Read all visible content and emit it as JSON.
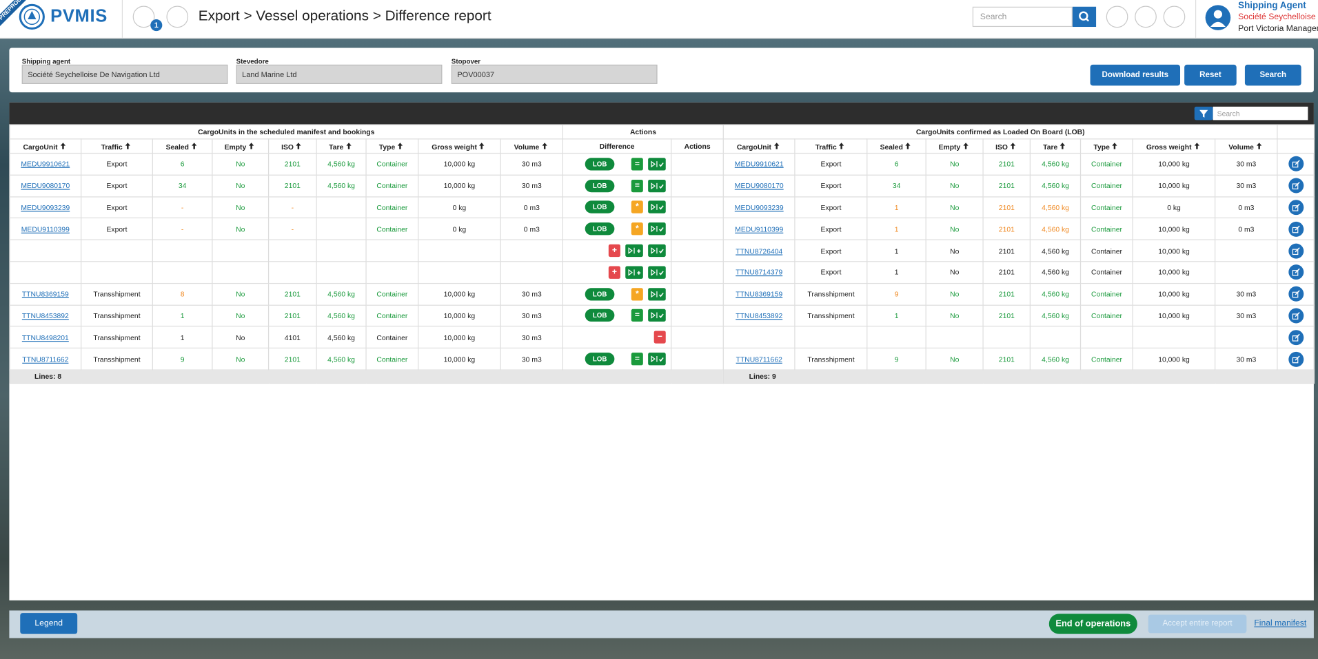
{
  "header": {
    "env": "PREPROD",
    "brand": "PVMIS",
    "notifications": 1,
    "breadcrumb": "Export > Vessel operations > Difference report",
    "search_placeholder": "Search",
    "user": {
      "role": "Shipping Agent",
      "company": "Société Seychelloise De",
      "organization": "Port Victoria Managem"
    }
  },
  "filters": [
    {
      "label": "Shipping agent",
      "value": "Société Seychelloise De Navigation Ltd"
    },
    {
      "label": "Stevedore",
      "value": "Land Marine Ltd"
    },
    {
      "label": "Stopover",
      "value": "POV00037"
    }
  ],
  "buttons": {
    "download": "Download results",
    "reset": "Reset",
    "search": "Search"
  },
  "table": {
    "search_placeholder": "Search",
    "groups": {
      "left": "CargoUnits in the scheduled manifest and bookings",
      "actions": "Actions",
      "right": "CargoUnits confirmed as Loaded On Board (LOB)"
    },
    "left_columns": [
      "CargoUnit",
      "Traffic",
      "Sealed",
      "Empty",
      "ISO",
      "Tare",
      "Type",
      "Gross weight",
      "Volume"
    ],
    "middle_columns": [
      "Difference",
      "Actions"
    ],
    "right_columns": [
      "CargoUnit",
      "Traffic",
      "Sealed",
      "Empty",
      "ISO",
      "Tare",
      "Type",
      "Gross weight",
      "Volume"
    ],
    "rows": [
      {
        "left": [
          "MEDU9910621",
          "Export",
          "6",
          "No",
          "2101",
          "4,560 kg",
          "Container",
          "10,000 kg",
          "30 m3"
        ],
        "left_colors": [
          "green",
          "green",
          "green",
          "green",
          "green"
        ],
        "status": "LOB",
        "difference": "=",
        "right": [
          "MEDU9910621",
          "Export",
          "6",
          "No",
          "2101",
          "4,560 kg",
          "Container",
          "10,000 kg",
          "30 m3"
        ],
        "right_colors": [
          "green",
          "green",
          "green",
          "green",
          "green"
        ]
      },
      {
        "left": [
          "MEDU9080170",
          "Export",
          "34",
          "No",
          "2101",
          "4,560 kg",
          "Container",
          "10,000 kg",
          "30 m3"
        ],
        "left_colors": [
          "green",
          "green",
          "green",
          "green",
          "green"
        ],
        "status": "LOB",
        "difference": "=",
        "right": [
          "MEDU9080170",
          "Export",
          "34",
          "No",
          "2101",
          "4,560 kg",
          "Container",
          "10,000 kg",
          "30 m3"
        ],
        "right_colors": [
          "green",
          "green",
          "green",
          "green",
          "green"
        ]
      },
      {
        "left": [
          "MEDU9093239",
          "Export",
          "-",
          "No",
          "-",
          null,
          "Container",
          "0 kg",
          "0 m3"
        ],
        "left_colors": [
          "orange",
          "green",
          "orange",
          "black",
          "green"
        ],
        "status": "LOB",
        "difference": "*",
        "right": [
          "MEDU9093239",
          "Export",
          "1",
          "No",
          "2101",
          "4,560 kg",
          "Container",
          "0 kg",
          "0 m3"
        ],
        "right_colors": [
          "orange",
          "green",
          "orange",
          "orange",
          "green"
        ]
      },
      {
        "left": [
          "MEDU9110399",
          "Export",
          "-",
          "No",
          "-",
          null,
          "Container",
          "0 kg",
          "0 m3"
        ],
        "left_colors": [
          "orange",
          "green",
          "orange",
          "black",
          "green"
        ],
        "status": "LOB",
        "difference": "*",
        "right": [
          "MEDU9110399",
          "Export",
          "1",
          "No",
          "2101",
          "4,560 kg",
          "Container",
          "10,000 kg",
          "0 m3"
        ],
        "right_colors": [
          "orange",
          "green",
          "orange",
          "orange",
          "green"
        ]
      },
      {
        "left": null,
        "left_colors": null,
        "status": null,
        "difference": "+",
        "right": [
          "TTNU8726404",
          "Export",
          "1",
          "No",
          "2101",
          "4,560 kg",
          "Container",
          "10,000 kg",
          null
        ],
        "right_colors": [
          "black",
          "black",
          "black",
          "black",
          "black"
        ]
      },
      {
        "left": null,
        "left_colors": null,
        "status": null,
        "difference": "+",
        "right": [
          "TTNU8714379",
          "Export",
          "1",
          "No",
          "2101",
          "4,560 kg",
          "Container",
          "10,000 kg",
          null
        ],
        "right_colors": [
          "black",
          "black",
          "black",
          "black",
          "black"
        ]
      },
      {
        "left": [
          "TTNU8369159",
          "Transshipment",
          "8",
          "No",
          "2101",
          "4,560 kg",
          "Container",
          "10,000 kg",
          "30 m3"
        ],
        "left_colors": [
          "orange",
          "green",
          "green",
          "green",
          "green"
        ],
        "status": "LOB",
        "difference": "*",
        "right": [
          "TTNU8369159",
          "Transshipment",
          "9",
          "No",
          "2101",
          "4,560 kg",
          "Container",
          "10,000 kg",
          "30 m3"
        ],
        "right_colors": [
          "orange",
          "green",
          "green",
          "green",
          "green"
        ]
      },
      {
        "left": [
          "TTNU8453892",
          "Transshipment",
          "1",
          "No",
          "2101",
          "4,560 kg",
          "Container",
          "10,000 kg",
          "30 m3"
        ],
        "left_colors": [
          "green",
          "green",
          "green",
          "green",
          "green"
        ],
        "status": "LOB",
        "difference": "=",
        "right": [
          "TTNU8453892",
          "Transshipment",
          "1",
          "No",
          "2101",
          "4,560 kg",
          "Container",
          "10,000 kg",
          "30 m3"
        ],
        "right_colors": [
          "green",
          "green",
          "green",
          "green",
          "green"
        ]
      },
      {
        "left": [
          "TTNU8498201",
          "Transshipment",
          "1",
          "No",
          "4101",
          "4,560 kg",
          "Container",
          "10,000 kg",
          "30 m3"
        ],
        "left_colors": [
          "black",
          "black",
          "black",
          "black",
          "black"
        ],
        "status": null,
        "difference": "−",
        "right": null,
        "right_colors": null
      },
      {
        "left": [
          "TTNU8711662",
          "Transshipment",
          "9",
          "No",
          "2101",
          "4,560 kg",
          "Container",
          "10,000 kg",
          "30 m3"
        ],
        "left_colors": [
          "green",
          "green",
          "green",
          "green",
          "green"
        ],
        "status": "LOB",
        "difference": "=",
        "right": [
          "TTNU8711662",
          "Transshipment",
          "9",
          "No",
          "2101",
          "4,560 kg",
          "Container",
          "10,000 kg",
          "30 m3"
        ],
        "right_colors": [
          "green",
          "green",
          "green",
          "green",
          "green"
        ]
      }
    ],
    "left_lines": "Lines: 8",
    "right_lines": "Lines: 9"
  },
  "footer": {
    "legend": "Legend",
    "end": "End of operations",
    "accept": "Accept entire report",
    "final": "Final manifest"
  }
}
